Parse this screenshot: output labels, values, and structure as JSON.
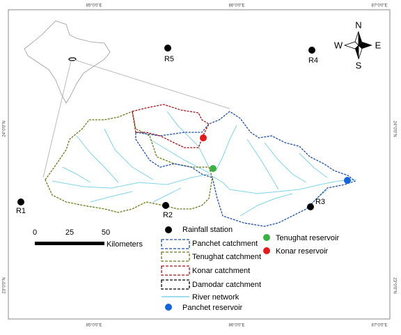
{
  "graticule": {
    "top": [
      "85°0'0\"E",
      "86°0'0\"E",
      "87°0'0\"E"
    ],
    "bottom": [
      "85°0'0\"E",
      "86°0'0\"E",
      "87°0'0\"E"
    ],
    "left": [
      "24°0'0\"N",
      "23°0'0\"N"
    ],
    "right": [
      "24°0'0\"N",
      "23°0'0\"N"
    ]
  },
  "stations": [
    "R1",
    "R2",
    "R3",
    "R4",
    "R5"
  ],
  "legend": {
    "items": [
      "Rainfall station",
      "Panchet catchment",
      "Tenughat catchment",
      "Konar catchment",
      "Damodar catchment",
      "River network",
      "Panchet reservoir",
      "Tenughat reservoir",
      "Konar reservoir"
    ]
  },
  "scale_bar": {
    "ticks": [
      "0",
      "25",
      "50"
    ],
    "unit": "Kilometers"
  },
  "compass": {
    "north": "N",
    "east": "E",
    "south": "S",
    "west": "W"
  }
}
